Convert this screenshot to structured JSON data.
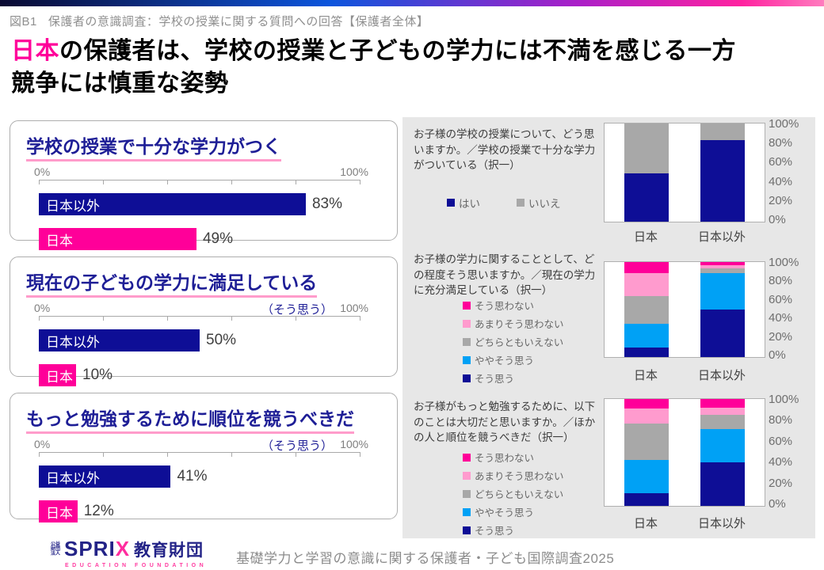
{
  "colors": {
    "navy": "#0e0e96",
    "magenta": "#ff0099",
    "pink": "#ff9bce",
    "gray": "#a8a8a8",
    "lightblue": "#00a1f5"
  },
  "header": {
    "figure_tag": "図B1",
    "subtitle": "保護者の意識調査：学校の授業に関する質問への回答【保護者全体】"
  },
  "title": {
    "highlight": "日本",
    "line1_rest": "の保護者は、学校の授業と子どもの学力には不満を感じる一方",
    "line2": "競争には慎重な姿勢"
  },
  "left_charts": [
    {
      "title": "学校の授業で十分な学力がつく",
      "note": "",
      "axis_min": "0%",
      "axis_max": "100%",
      "bars": [
        {
          "name": "日本以外",
          "value": 83,
          "label": "83%",
          "color": "navy"
        },
        {
          "name": "日本",
          "value": 49,
          "label": "49%",
          "color": "magenta"
        }
      ]
    },
    {
      "title": "現在の子どもの学力に満足している",
      "note": "（そう思う）",
      "axis_min": "0%",
      "axis_max": "100%",
      "bars": [
        {
          "name": "日本以外",
          "value": 50,
          "label": "50%",
          "color": "navy"
        },
        {
          "name": "日本",
          "value": 10,
          "label": "10%",
          "color": "magenta"
        }
      ]
    },
    {
      "title": "もっと勉強するために順位を競うべきだ",
      "note": "（そう思う）",
      "axis_min": "0%",
      "axis_max": "100%",
      "bars": [
        {
          "name": "日本以外",
          "value": 41,
          "label": "41%",
          "color": "navy"
        },
        {
          "name": "日本",
          "value": 12,
          "label": "12%",
          "color": "magenta"
        }
      ]
    }
  ],
  "chart_data": [
    {
      "type": "stacked-bar",
      "question": "お子様の学校の授業について、どう思いますか。／学校の授業で十分な学力がついている（択一）",
      "categories": [
        "日本",
        "日本以外"
      ],
      "ylim": [
        0,
        100
      ],
      "y_ticks": [
        "100%",
        "80%",
        "60%",
        "40%",
        "20%",
        "0%"
      ],
      "series": [
        {
          "name": "いいえ",
          "color": "gray",
          "values": [
            51,
            17
          ]
        },
        {
          "name": "はい",
          "color": "navy",
          "values": [
            49,
            83
          ]
        }
      ],
      "legend": [
        {
          "label": "はい",
          "color": "navy"
        },
        {
          "label": "いいえ",
          "color": "gray"
        }
      ]
    },
    {
      "type": "stacked-bar",
      "question": "お子様の学力に関することとして、どの程度そう思いますか。／現在の学力に充分満足している（択一）",
      "categories": [
        "日本",
        "日本以外"
      ],
      "ylim": [
        0,
        100
      ],
      "y_ticks": [
        "100%",
        "80%",
        "60%",
        "40%",
        "20%",
        "0%"
      ],
      "series": [
        {
          "name": "そう思わない",
          "color": "magenta",
          "values": [
            12,
            3
          ]
        },
        {
          "name": "あまりそう思わない",
          "color": "pink",
          "values": [
            24,
            4
          ]
        },
        {
          "name": "どちらともいえない",
          "color": "gray",
          "values": [
            29,
            5
          ]
        },
        {
          "name": "ややそう思う",
          "color": "lightblue",
          "values": [
            25,
            38
          ]
        },
        {
          "name": "そう思う",
          "color": "navy",
          "values": [
            10,
            50
          ]
        }
      ],
      "legend": [
        {
          "label": "そう思わない",
          "color": "magenta"
        },
        {
          "label": "あまりそう思わない",
          "color": "pink"
        },
        {
          "label": "どちらともいえない",
          "color": "gray"
        },
        {
          "label": "ややそう思う",
          "color": "lightblue"
        },
        {
          "label": "そう思う",
          "color": "navy"
        }
      ]
    },
    {
      "type": "stacked-bar",
      "question": "お子様がもっと勉強するために、以下のことは大切だと思いますか。／ほかの人と順位を競うべきだ（択一）",
      "categories": [
        "日本",
        "日本以外"
      ],
      "ylim": [
        0,
        100
      ],
      "y_ticks": [
        "100%",
        "80%",
        "60%",
        "40%",
        "20%",
        "0%"
      ],
      "series": [
        {
          "name": "そう思わない",
          "color": "magenta",
          "values": [
            9,
            8
          ]
        },
        {
          "name": "あまりそう思わない",
          "color": "pink",
          "values": [
            14,
            7
          ]
        },
        {
          "name": "どちらともいえない",
          "color": "gray",
          "values": [
            34,
            13
          ]
        },
        {
          "name": "ややそう思う",
          "color": "lightblue",
          "values": [
            31,
            31
          ]
        },
        {
          "name": "そう思う",
          "color": "navy",
          "values": [
            12,
            41
          ]
        }
      ],
      "legend": [
        {
          "label": "そう思わない",
          "color": "magenta"
        },
        {
          "label": "あまりそう思わない",
          "color": "pink"
        },
        {
          "label": "どちらともいえない",
          "color": "gray"
        },
        {
          "label": "ややそう思う",
          "color": "lightblue"
        },
        {
          "label": "そう思う",
          "color": "navy"
        }
      ]
    }
  ],
  "footer": {
    "logo_small": "公益財団法人",
    "logo_sprix": "SPRI",
    "logo_x": "X",
    "logo_jp": "教育財団",
    "logo_sub": "EDUCATION FOUNDATION",
    "caption": "基礎学力と学習の意識に関する保護者・子ども国際調査2025"
  }
}
